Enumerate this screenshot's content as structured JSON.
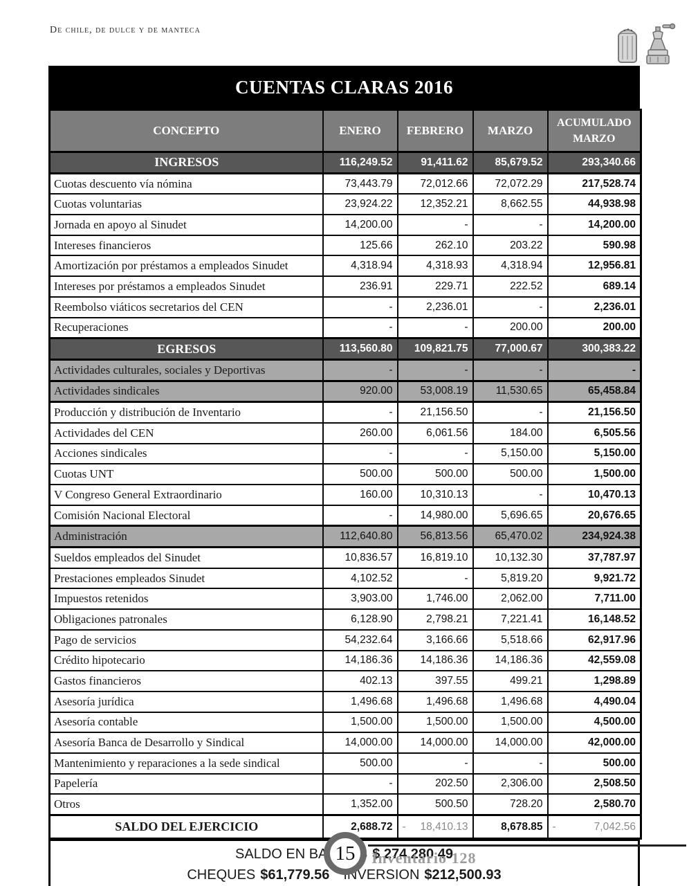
{
  "page": {
    "masthead": "De chile, de dulce y de manteca",
    "footer": {
      "page_number": "15",
      "publication": "Inventario 128"
    }
  },
  "icons": {
    "masthead_icon": "salt-shaker-and-pepper-grinder-illustration"
  },
  "colors": {
    "title_bar": "#000000",
    "header_row": "#7d7d7d",
    "section_row": "#575757",
    "highlight_row": "#a8a8a8",
    "negative_value": "#8a8a8a"
  },
  "table": {
    "title": "CUENTAS CLARAS 2016",
    "columns": {
      "concepto": "CONCEPTO",
      "enero": "ENERO",
      "febrero": "FEBRERO",
      "marzo": "MARZO",
      "acumulado": "ACUMULADO MARZO"
    },
    "rows": [
      {
        "type": "section",
        "label": "INGRESOS",
        "values": [
          "116,249.52",
          "91,411.62",
          "85,679.52",
          "293,340.66"
        ]
      },
      {
        "type": "item",
        "label": "Cuotas descuento vía nómina",
        "values": [
          "73,443.79",
          "72,012.66",
          "72,072.29",
          "217,528.74"
        ]
      },
      {
        "type": "item",
        "label": "Cuotas voluntarias",
        "values": [
          "23,924.22",
          "12,352.21",
          "8,662.55",
          "44,938.98"
        ]
      },
      {
        "type": "item",
        "label": "Jornada en apoyo al Sinudet",
        "values": [
          "14,200.00",
          "-",
          "-",
          "14,200.00"
        ]
      },
      {
        "type": "item",
        "label": "Intereses financieros",
        "values": [
          "125.66",
          "262.10",
          "203.22",
          "590.98"
        ]
      },
      {
        "type": "item",
        "label": "Amortización por préstamos a empleados Sinudet",
        "values": [
          "4,318.94",
          "4,318.93",
          "4,318.94",
          "12,956.81"
        ]
      },
      {
        "type": "item",
        "label": "Intereses por préstamos a empleados Sinudet",
        "values": [
          "236.91",
          "229.71",
          "222.52",
          "689.14"
        ]
      },
      {
        "type": "item",
        "label": "Reembolso viáticos secretarios del CEN",
        "values": [
          "-",
          "2,236.01",
          "-",
          "2,236.01"
        ]
      },
      {
        "type": "item",
        "label": "Recuperaciones",
        "values": [
          "-",
          "-",
          "200.00",
          "200.00"
        ]
      },
      {
        "type": "section",
        "label": "EGRESOS",
        "values": [
          "113,560.80",
          "109,821.75",
          "77,000.67",
          "300,383.22"
        ]
      },
      {
        "type": "highlight",
        "label": "Actividades culturales, sociales y Deportivas",
        "values": [
          "-",
          "-",
          "-",
          "-"
        ]
      },
      {
        "type": "highlight",
        "label": "Actividades sindicales",
        "values": [
          "920.00",
          "53,008.19",
          "11,530.65",
          "65,458.84"
        ]
      },
      {
        "type": "item",
        "label": "Producción y distribución de Inventario",
        "values": [
          "-",
          "21,156.50",
          "-",
          "21,156.50"
        ]
      },
      {
        "type": "item",
        "label": "Actividades del CEN",
        "values": [
          "260.00",
          "6,061.56",
          "184.00",
          "6,505.56"
        ]
      },
      {
        "type": "item",
        "label": "Acciones sindicales",
        "values": [
          "-",
          "-",
          "5,150.00",
          "5,150.00"
        ]
      },
      {
        "type": "item",
        "label": "Cuotas UNT",
        "values": [
          "500.00",
          "500.00",
          "500.00",
          "1,500.00"
        ]
      },
      {
        "type": "item",
        "label": "V Congreso General Extraordinario",
        "values": [
          "160.00",
          "10,310.13",
          "-",
          "10,470.13"
        ]
      },
      {
        "type": "item",
        "label": "Comisión Nacional Electoral",
        "values": [
          "-",
          "14,980.00",
          "5,696.65",
          "20,676.65"
        ]
      },
      {
        "type": "highlight",
        "label": "Administración",
        "values": [
          "112,640.80",
          "56,813.56",
          "65,470.02",
          "234,924.38"
        ]
      },
      {
        "type": "item",
        "label": "Sueldos empleados del Sinudet",
        "values": [
          "10,836.57",
          "16,819.10",
          "10,132.30",
          "37,787.97"
        ]
      },
      {
        "type": "item",
        "label": "Prestaciones empleados Sinudet",
        "values": [
          "4,102.52",
          "-",
          "5,819.20",
          "9,921.72"
        ]
      },
      {
        "type": "item",
        "label": "Impuestos retenidos",
        "values": [
          "3,903.00",
          "1,746.00",
          "2,062.00",
          "7,711.00"
        ]
      },
      {
        "type": "item",
        "label": "Obligaciones patronales",
        "values": [
          "6,128.90",
          "2,798.21",
          "7,221.41",
          "16,148.52"
        ]
      },
      {
        "type": "item",
        "label": "Pago de servicios",
        "values": [
          "54,232.64",
          "3,166.66",
          "5,518.66",
          "62,917.96"
        ]
      },
      {
        "type": "item",
        "label": "Crédito hipotecario",
        "values": [
          "14,186.36",
          "14,186.36",
          "14,186.36",
          "42,559.08"
        ]
      },
      {
        "type": "item",
        "label": "Gastos financieros",
        "values": [
          "402.13",
          "397.55",
          "499.21",
          "1,298.89"
        ]
      },
      {
        "type": "item",
        "label": "Asesoría jurídica",
        "values": [
          "1,496.68",
          "1,496.68",
          "1,496.68",
          "4,490.04"
        ]
      },
      {
        "type": "item",
        "label": "Asesoría contable",
        "values": [
          "1,500.00",
          "1,500.00",
          "1,500.00",
          "4,500.00"
        ]
      },
      {
        "type": "item",
        "label": "Asesoría Banca de Desarrollo y Sindical",
        "values": [
          "14,000.00",
          "14,000.00",
          "14,000.00",
          "42,000.00"
        ]
      },
      {
        "type": "item",
        "label": "Mantenimiento y reparaciones a la sede sindical",
        "values": [
          "500.00",
          "-",
          "-",
          "500.00"
        ]
      },
      {
        "type": "item",
        "label": "Papelería",
        "values": [
          "-",
          "202.50",
          "2,306.00",
          "2,508.50"
        ]
      },
      {
        "type": "item",
        "label": "Otros",
        "values": [
          "1,352.00",
          "500.50",
          "728.20",
          "2,580.70"
        ]
      },
      {
        "type": "saldo",
        "label": "SALDO DEL EJERCICIO",
        "values": [
          "2,688.72",
          {
            "neg": true,
            "value": "18,410.13"
          },
          "8,678.85",
          {
            "neg": true,
            "value": "7,042.56"
          }
        ]
      }
    ],
    "summary": {
      "line1_label": "SALDO EN BANCOS",
      "line1_value": "$ 274,280.49",
      "line2_label_a": "CHEQUES",
      "line2_value_a": "$61,779.56",
      "line2_label_b": "INVERSION",
      "line2_value_b": "$212,500.93"
    }
  }
}
